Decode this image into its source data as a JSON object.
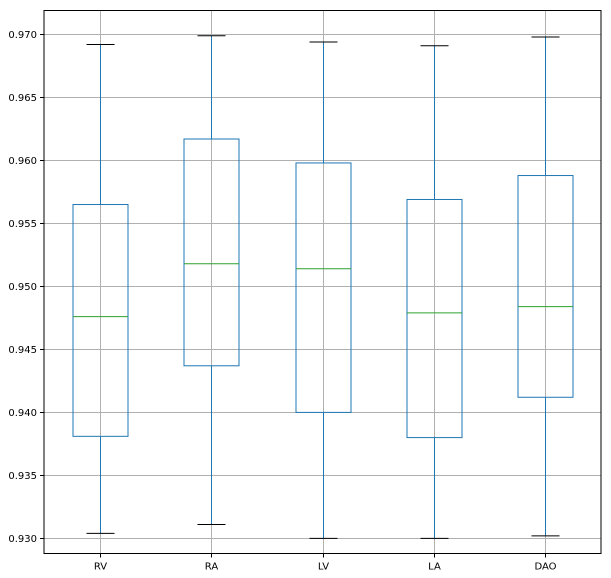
{
  "chart_data": {
    "type": "box",
    "categories": [
      "RV",
      "RA",
      "LV",
      "LA",
      "DAO"
    ],
    "boxes": [
      {
        "category": "RV",
        "whisker_low": 0.9304,
        "q1": 0.9381,
        "median": 0.9476,
        "q3": 0.9565,
        "whisker_high": 0.9692
      },
      {
        "category": "RA",
        "whisker_low": 0.9311,
        "q1": 0.9437,
        "median": 0.9518,
        "q3": 0.9617,
        "whisker_high": 0.9699
      },
      {
        "category": "LV",
        "whisker_low": 0.93,
        "q1": 0.94,
        "median": 0.9514,
        "q3": 0.9598,
        "whisker_high": 0.9694
      },
      {
        "category": "LA",
        "whisker_low": 0.93,
        "q1": 0.938,
        "median": 0.9479,
        "q3": 0.9569,
        "whisker_high": 0.9691
      },
      {
        "category": "DAO",
        "whisker_low": 0.9302,
        "q1": 0.9412,
        "median": 0.9484,
        "q3": 0.9588,
        "whisker_high": 0.9698
      }
    ],
    "y_ticks": [
      "0.930",
      "0.935",
      "0.940",
      "0.945",
      "0.950",
      "0.955",
      "0.960",
      "0.965",
      "0.970"
    ],
    "ylim": [
      0.9288,
      0.9719
    ],
    "grid": true,
    "colors": {
      "box": "#1f77b4",
      "median": "#2ca02c",
      "cap": "#000000",
      "grid": "#b0b0b0"
    }
  }
}
